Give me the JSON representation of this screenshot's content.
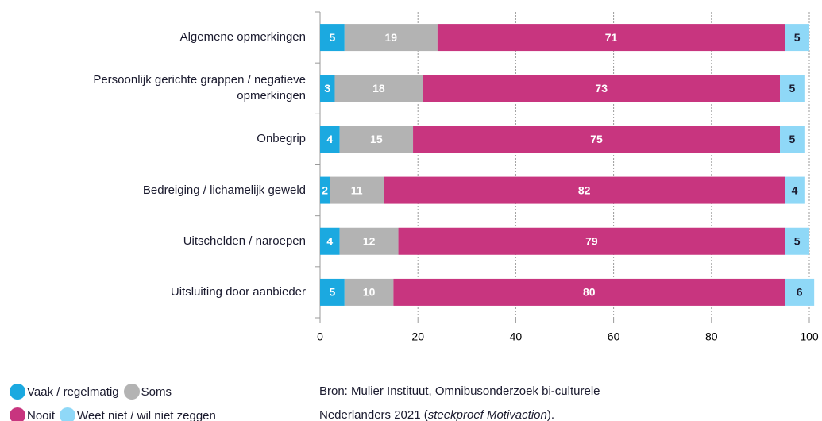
{
  "chart_data": {
    "type": "stacked_bar_horizontal",
    "categories": [
      "Algemene opmerkingen",
      "Persoonlijk gerichte grappen / negatieve opmerkingen",
      "Onbegrip",
      "Bedreiging / lichamelijk geweld",
      "Uitschelden / naroepen",
      "Uitsluiting door aanbieder"
    ],
    "series": [
      {
        "name": "Vaak / regelmatig",
        "color": "#1ba9e0",
        "values": [
          5,
          3,
          4,
          2,
          4,
          5
        ]
      },
      {
        "name": "Soms",
        "color": "#b3b3b3",
        "values": [
          19,
          18,
          15,
          11,
          12,
          10
        ]
      },
      {
        "name": "Nooit",
        "color": "#c8357f",
        "values": [
          71,
          73,
          75,
          82,
          79,
          80
        ]
      },
      {
        "name": "Weet niet / wil niet zeggen",
        "color": "#8fd8f7",
        "values": [
          5,
          5,
          5,
          4,
          5,
          6
        ]
      }
    ],
    "xlim": [
      0,
      100
    ],
    "xticks": [
      0,
      20,
      40,
      60,
      80,
      100
    ],
    "grid": true,
    "source": [
      [
        "Bron: Mulier Instituut, Omnibusonderzoek bi-culturele"
      ],
      [
        "Nederlanders 2021 (",
        "steekproef Motivaction",
        ")."
      ]
    ]
  }
}
